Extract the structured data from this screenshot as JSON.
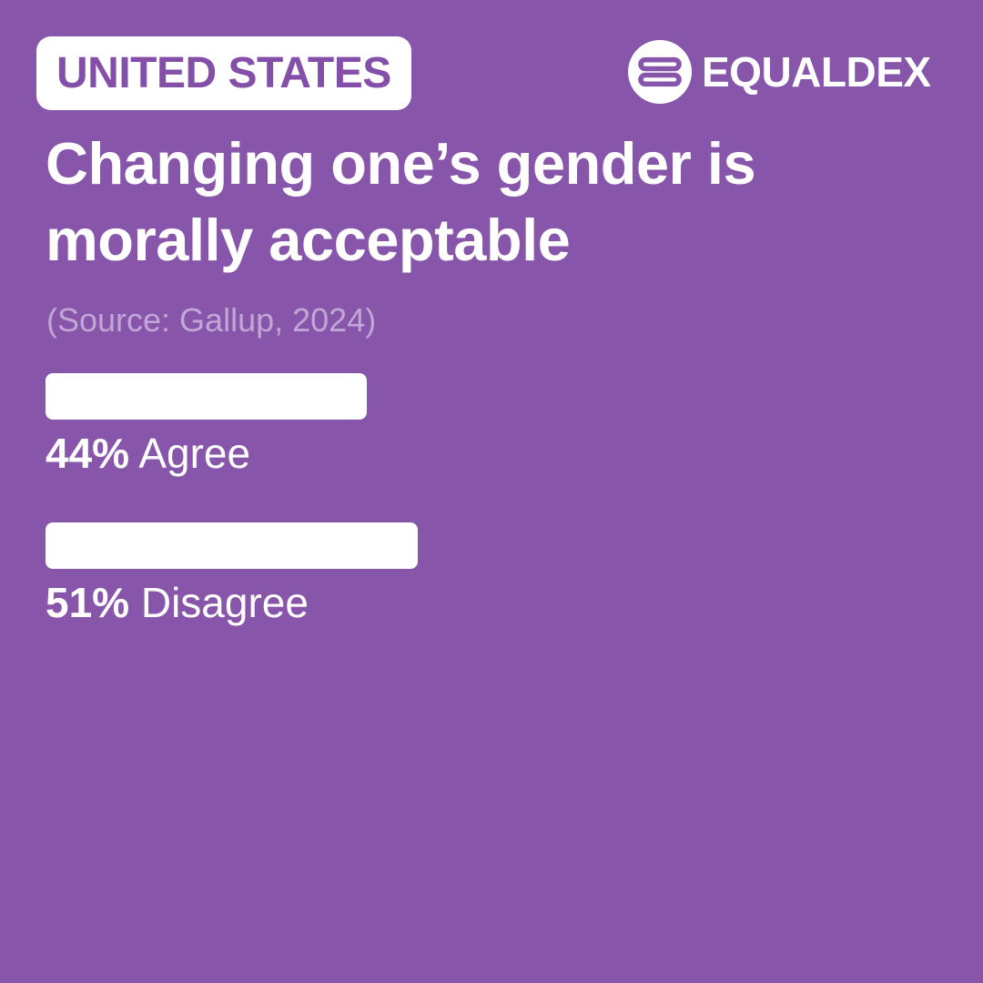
{
  "badge": {
    "text": "UNITED STATES"
  },
  "brand": {
    "name": "EQUALDEX"
  },
  "colors": {
    "background": "#8755aa",
    "accent_text": "#834fa8",
    "source_text": "#c1a6d6",
    "bar": "#ffffff",
    "text": "#ffffff"
  },
  "chart_data": {
    "type": "bar",
    "orientation": "horizontal",
    "title": "Changing one’s gender is morally acceptable",
    "source": "(Source: Gallup, 2024)",
    "categories": [
      "Agree",
      "Disagree"
    ],
    "values": [
      44,
      51
    ],
    "value_labels": [
      "44%",
      "51%"
    ],
    "unit": "%",
    "xlim": [
      0,
      100
    ]
  }
}
